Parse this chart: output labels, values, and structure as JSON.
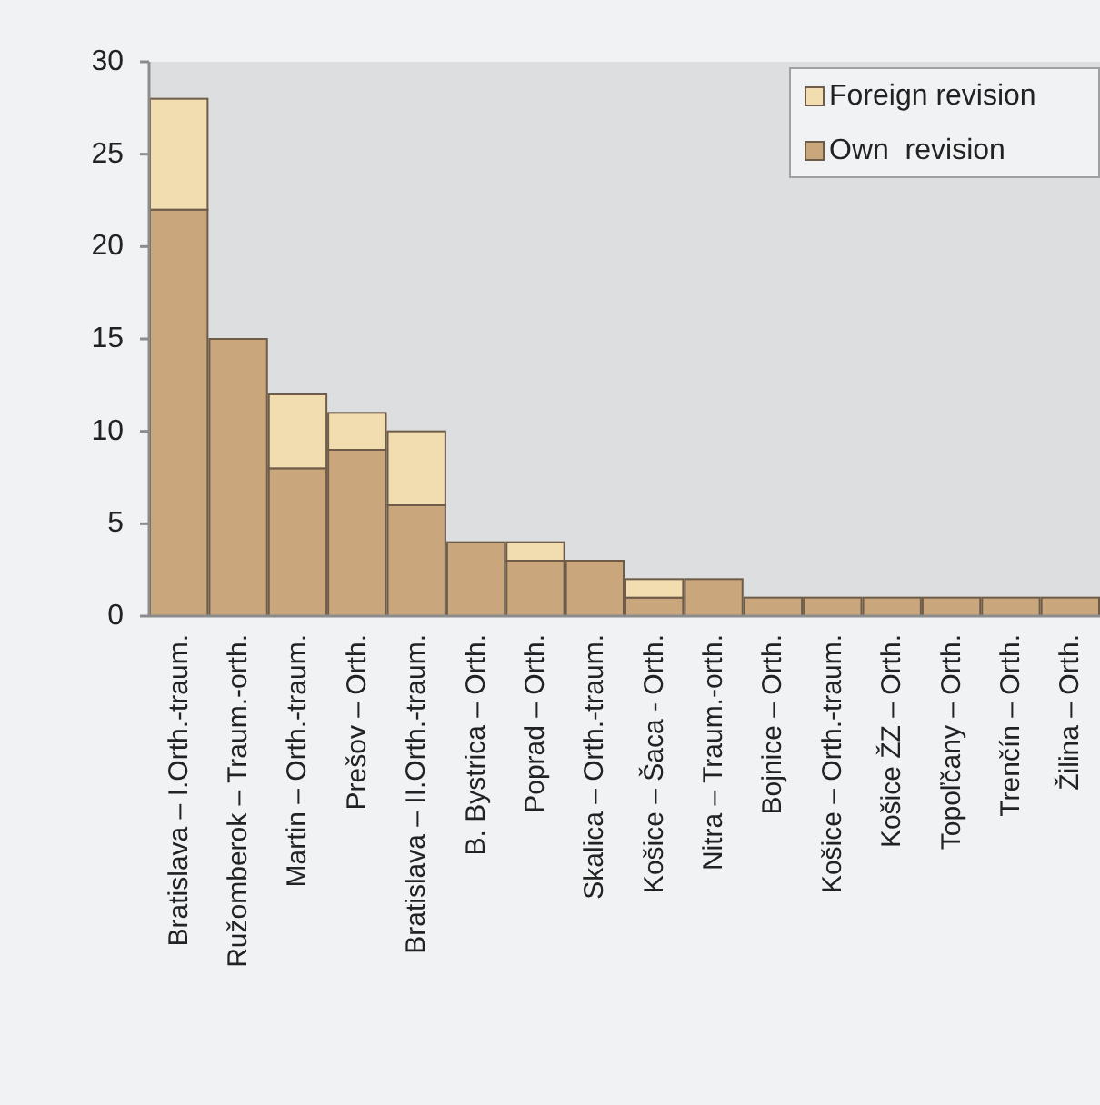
{
  "chart_data": {
    "type": "bar",
    "stacked": true,
    "categories": [
      "Bratislava – I.Orth.-traum.",
      "Ružomberok – Traum.-orth.",
      "Martin – Orth.-traum.",
      "Prešov – Orth.",
      "Bratislava – II.Orth.-traum.",
      "B. Bystrica – Orth.",
      "Poprad – Orth.",
      "Skalica – Orth.-traum.",
      "Košice – Šaca - Orth.",
      "Nitra – Traum.-orth.",
      "Bojnice – Orth.",
      "Košice – Orth.-traum.",
      "Košice ŽZ – Orth.",
      "Topoľčany – Orth.",
      "Trenčín – Orth.",
      "Žilina – Orth."
    ],
    "series": [
      {
        "name": "Own  revision",
        "color": "#c9a67c",
        "values": [
          22,
          15,
          8,
          9,
          6,
          4,
          3,
          3,
          1,
          2,
          1,
          1,
          1,
          1,
          1,
          1
        ]
      },
      {
        "name": "Foreign revision",
        "color": "#f2ddb0",
        "values": [
          6,
          0,
          4,
          2,
          4,
          0,
          1,
          0,
          1,
          0,
          0,
          0,
          0,
          0,
          0,
          0
        ]
      }
    ],
    "ylim": [
      0,
      30
    ],
    "yticks": [
      0,
      5,
      10,
      15,
      20,
      25,
      30
    ],
    "grid": false,
    "legend": "top right"
  }
}
